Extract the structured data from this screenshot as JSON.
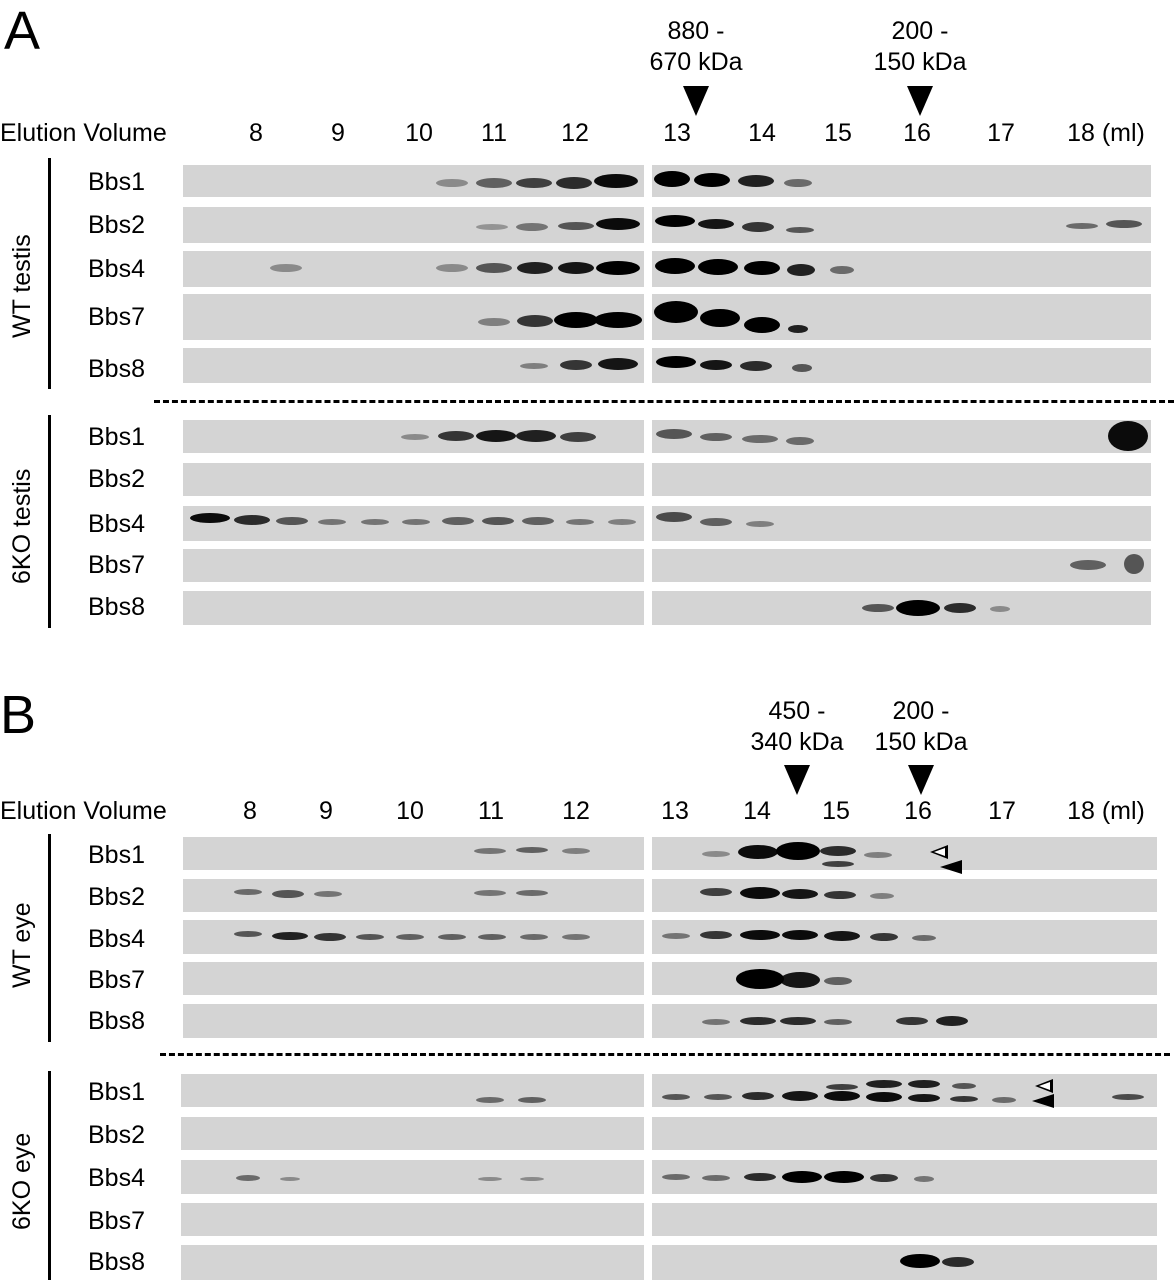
{
  "panel_a": {
    "letter": "A",
    "elution_label": "Elution Volume",
    "volumes": [
      "8",
      "9",
      "10",
      "11",
      "12",
      "13",
      "14",
      "15",
      "16",
      "17",
      "18 (ml)"
    ],
    "markers": [
      {
        "line1": "880 -",
        "line2": "670 kDa"
      },
      {
        "line1": "200 -",
        "line2": "150 kDa"
      }
    ],
    "groups": [
      {
        "name": "WT testis",
        "rows": [
          "Bbs1",
          "Bbs2",
          "Bbs4",
          "Bbs7",
          "Bbs8"
        ]
      },
      {
        "name": "6KO testis",
        "rows": [
          "Bbs1",
          "Bbs2",
          "Bbs4",
          "Bbs7",
          "Bbs8"
        ]
      }
    ]
  },
  "panel_b": {
    "letter": "B",
    "elution_label": "Elution Volume",
    "volumes": [
      "8",
      "9",
      "10",
      "11",
      "12",
      "13",
      "14",
      "15",
      "16",
      "17",
      "18 (ml)"
    ],
    "markers": [
      {
        "line1": "450 -",
        "line2": "340 kDa"
      },
      {
        "line1": "200 -",
        "line2": "150 kDa"
      }
    ],
    "groups": [
      {
        "name": "WT eye",
        "rows": [
          "Bbs1",
          "Bbs2",
          "Bbs4",
          "Bbs7",
          "Bbs8"
        ]
      },
      {
        "name": "6KO eye",
        "rows": [
          "Bbs1",
          "Bbs2",
          "Bbs4",
          "Bbs7",
          "Bbs8"
        ]
      }
    ]
  },
  "colors": {
    "strip": "#d4d4d4",
    "band": "#000000",
    "background": "#ffffff"
  }
}
